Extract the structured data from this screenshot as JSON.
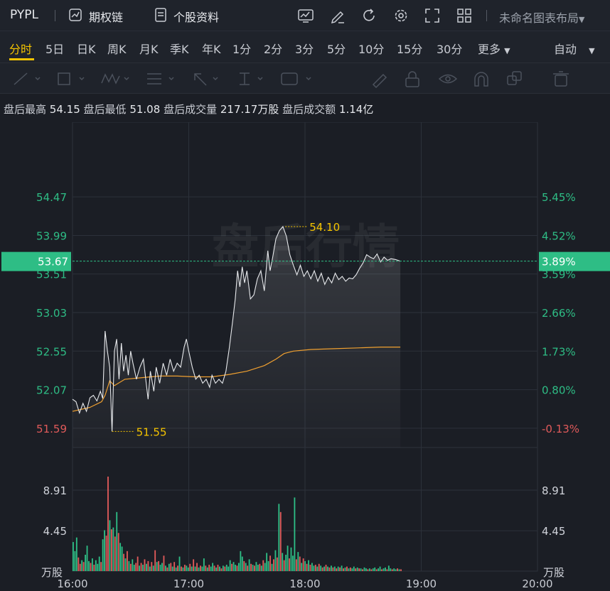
{
  "header": {
    "symbol": "PYPL",
    "options_chain": "期权链",
    "stock_profile": "个股资料",
    "icons": [
      "chart-type-icon",
      "draw-icon",
      "refresh-icon",
      "settings-icon",
      "fullscreen-icon",
      "layout-grid-icon"
    ],
    "layout_name": "未命名图表布局"
  },
  "periods": {
    "items": [
      "分时",
      "5日",
      "日K",
      "周K",
      "月K",
      "季K",
      "年K",
      "1分",
      "2分",
      "3分",
      "5分",
      "10分",
      "15分",
      "30分"
    ],
    "more": "更多",
    "active": "分时",
    "mode": "自动"
  },
  "tools": [
    "trend-line-icon",
    "rectangle-icon",
    "pattern-icon",
    "fib-icon",
    "arrow-icon",
    "measure-icon",
    "text-label-icon",
    "pencil-icon",
    "lock-icon",
    "eye-icon",
    "magnet-icon",
    "copy-icon",
    "trash-icon"
  ],
  "stats": {
    "high_label": "盘后最高",
    "high_value": "54.15",
    "low_label": "盘后最低",
    "low_value": "51.08",
    "vol_label": "盘后成交量",
    "vol_value": "217.17万股",
    "amt_label": "盘后成交额",
    "amt_value": "1.14亿"
  },
  "watermark": "盘后行情",
  "colors": {
    "up": "#2ebd85",
    "down": "#e05a5a",
    "price_line": "#e8eaed",
    "avg_line": "#f0a030",
    "annot": "#f5c400",
    "grid": "#2c313a"
  },
  "chart_data": {
    "type": "line",
    "ylim": [
      51.35,
      55.4
    ],
    "price_ticks": [
      "54.47",
      "53.99",
      "53.51",
      "53.03",
      "52.55",
      "52.07",
      "51.59"
    ],
    "pct_ticks": [
      "5.45%",
      "4.52%",
      "3.59%",
      "2.66%",
      "1.73%",
      "0.80%",
      "-0.13%"
    ],
    "current_price": "53.67",
    "current_pct": "3.89%",
    "max_label": {
      "t": 1.83,
      "y": 54.1,
      "text": "54.10"
    },
    "min_label": {
      "t": 0.34,
      "y": 51.55,
      "text": "51.55"
    },
    "x_ticks": [
      "16:00",
      "17:00",
      "18:00",
      "19:00",
      "20:00"
    ],
    "xlim": [
      0,
      4
    ],
    "volume_unit": "万股",
    "volume_ticks": [
      "8.91",
      "4.45"
    ],
    "volume_ylim": [
      0,
      13.6
    ],
    "price": [
      [
        0,
        51.95
      ],
      [
        0.03,
        51.92
      ],
      [
        0.06,
        51.78
      ],
      [
        0.09,
        51.9
      ],
      [
        0.12,
        51.8
      ],
      [
        0.15,
        51.97
      ],
      [
        0.18,
        52.0
      ],
      [
        0.21,
        51.93
      ],
      [
        0.24,
        52.05
      ],
      [
        0.26,
        51.96
      ],
      [
        0.28,
        52.8
      ],
      [
        0.3,
        52.55
      ],
      [
        0.32,
        52.35
      ],
      [
        0.34,
        51.55
      ],
      [
        0.36,
        52.55
      ],
      [
        0.38,
        52.7
      ],
      [
        0.4,
        52.2
      ],
      [
        0.42,
        52.65
      ],
      [
        0.44,
        52.3
      ],
      [
        0.46,
        52.5
      ],
      [
        0.48,
        52.25
      ],
      [
        0.5,
        52.55
      ],
      [
        0.52,
        52.4
      ],
      [
        0.55,
        52.2
      ],
      [
        0.58,
        52.35
      ],
      [
        0.61,
        52.45
      ],
      [
        0.63,
        52.2
      ],
      [
        0.65,
        51.95
      ],
      [
        0.67,
        52.3
      ],
      [
        0.7,
        52.05
      ],
      [
        0.72,
        52.35
      ],
      [
        0.75,
        52.15
      ],
      [
        0.78,
        52.4
      ],
      [
        0.81,
        52.25
      ],
      [
        0.84,
        52.45
      ],
      [
        0.87,
        52.3
      ],
      [
        0.9,
        52.4
      ],
      [
        0.93,
        52.35
      ],
      [
        0.96,
        52.6
      ],
      [
        0.98,
        52.7
      ],
      [
        1.0,
        52.55
      ],
      [
        1.03,
        52.35
      ],
      [
        1.06,
        52.2
      ],
      [
        1.09,
        52.25
      ],
      [
        1.12,
        52.15
      ],
      [
        1.15,
        52.2
      ],
      [
        1.18,
        52.1
      ],
      [
        1.2,
        52.25
      ],
      [
        1.23,
        52.15
      ],
      [
        1.26,
        52.2
      ],
      [
        1.29,
        52.15
      ],
      [
        1.32,
        52.3
      ],
      [
        1.35,
        52.6
      ],
      [
        1.38,
        52.95
      ],
      [
        1.4,
        53.2
      ],
      [
        1.42,
        53.55
      ],
      [
        1.44,
        53.35
      ],
      [
        1.46,
        53.6
      ],
      [
        1.48,
        53.4
      ],
      [
        1.5,
        53.55
      ],
      [
        1.53,
        53.2
      ],
      [
        1.56,
        53.25
      ],
      [
        1.59,
        53.45
      ],
      [
        1.62,
        53.55
      ],
      [
        1.65,
        53.3
      ],
      [
        1.68,
        53.8
      ],
      [
        1.7,
        53.55
      ],
      [
        1.72,
        53.7
      ],
      [
        1.75,
        53.95
      ],
      [
        1.78,
        54.05
      ],
      [
        1.81,
        54.1
      ],
      [
        1.84,
        53.98
      ],
      [
        1.87,
        53.75
      ],
      [
        1.9,
        53.62
      ],
      [
        1.93,
        53.5
      ],
      [
        1.96,
        53.62
      ],
      [
        1.99,
        53.48
      ],
      [
        2.02,
        53.55
      ],
      [
        2.05,
        53.45
      ],
      [
        2.08,
        53.55
      ],
      [
        2.11,
        53.42
      ],
      [
        2.14,
        53.52
      ],
      [
        2.17,
        53.38
      ],
      [
        2.2,
        53.47
      ],
      [
        2.23,
        53.4
      ],
      [
        2.26,
        53.52
      ],
      [
        2.29,
        53.44
      ],
      [
        2.32,
        53.48
      ],
      [
        2.35,
        53.42
      ],
      [
        2.38,
        53.46
      ],
      [
        2.41,
        53.45
      ],
      [
        2.44,
        53.5
      ],
      [
        2.47,
        53.58
      ],
      [
        2.5,
        53.65
      ],
      [
        2.53,
        53.75
      ],
      [
        2.56,
        53.72
      ],
      [
        2.59,
        53.7
      ],
      [
        2.62,
        53.76
      ],
      [
        2.65,
        53.66
      ],
      [
        2.68,
        53.72
      ],
      [
        2.71,
        53.68
      ],
      [
        2.74,
        53.7
      ],
      [
        2.78,
        53.69
      ],
      [
        2.82,
        53.67
      ]
    ],
    "avg": [
      [
        0,
        51.8
      ],
      [
        0.15,
        51.85
      ],
      [
        0.25,
        51.92
      ],
      [
        0.28,
        52.0
      ],
      [
        0.32,
        52.18
      ],
      [
        0.36,
        52.12
      ],
      [
        0.45,
        52.2
      ],
      [
        0.6,
        52.22
      ],
      [
        0.75,
        52.24
      ],
      [
        0.9,
        52.24
      ],
      [
        1.05,
        52.23
      ],
      [
        1.2,
        52.23
      ],
      [
        1.35,
        52.26
      ],
      [
        1.5,
        52.3
      ],
      [
        1.65,
        52.37
      ],
      [
        1.75,
        52.45
      ],
      [
        1.82,
        52.52
      ],
      [
        1.9,
        52.55
      ],
      [
        2.05,
        52.57
      ],
      [
        2.25,
        52.58
      ],
      [
        2.45,
        52.59
      ],
      [
        2.65,
        52.6
      ],
      [
        2.82,
        52.6
      ]
    ],
    "volume": [
      [
        0.0,
        3.2,
        "u"
      ],
      [
        0.015,
        2.2,
        "u"
      ],
      [
        0.03,
        3.7,
        "u"
      ],
      [
        0.045,
        1.5,
        "d"
      ],
      [
        0.06,
        0.8,
        "d"
      ],
      [
        0.075,
        1.2,
        "u"
      ],
      [
        0.09,
        1.0,
        "d"
      ],
      [
        0.105,
        1.8,
        "u"
      ],
      [
        0.12,
        2.8,
        "u"
      ],
      [
        0.135,
        1.1,
        "u"
      ],
      [
        0.15,
        0.9,
        "d"
      ],
      [
        0.165,
        1.4,
        "u"
      ],
      [
        0.18,
        0.7,
        "d"
      ],
      [
        0.195,
        1.2,
        "u"
      ],
      [
        0.21,
        0.8,
        "u"
      ],
      [
        0.225,
        1.6,
        "u"
      ],
      [
        0.24,
        1.0,
        "d"
      ],
      [
        0.255,
        3.5,
        "u"
      ],
      [
        0.27,
        4.5,
        "u"
      ],
      [
        0.285,
        3.9,
        "d"
      ],
      [
        0.3,
        10.4,
        "d"
      ],
      [
        0.315,
        5.6,
        "u"
      ],
      [
        0.33,
        4.6,
        "d"
      ],
      [
        0.345,
        4.8,
        "u"
      ],
      [
        0.36,
        3.8,
        "d"
      ],
      [
        0.375,
        6.5,
        "u"
      ],
      [
        0.39,
        4.2,
        "d"
      ],
      [
        0.405,
        3.1,
        "u"
      ],
      [
        0.42,
        2.7,
        "u"
      ],
      [
        0.435,
        1.9,
        "d"
      ],
      [
        0.45,
        1.4,
        "u"
      ],
      [
        0.465,
        2.2,
        "d"
      ],
      [
        0.48,
        1.1,
        "u"
      ],
      [
        0.495,
        0.8,
        "d"
      ],
      [
        0.51,
        1.3,
        "u"
      ],
      [
        0.525,
        0.7,
        "u"
      ],
      [
        0.54,
        0.9,
        "d"
      ],
      [
        0.555,
        1.6,
        "d"
      ],
      [
        0.57,
        0.6,
        "u"
      ],
      [
        0.585,
        0.9,
        "d"
      ],
      [
        0.6,
        0.7,
        "u"
      ],
      [
        0.615,
        1.3,
        "d"
      ],
      [
        0.63,
        0.8,
        "u"
      ],
      [
        0.645,
        1.1,
        "d"
      ],
      [
        0.66,
        0.5,
        "u"
      ],
      [
        0.675,
        1.0,
        "d"
      ],
      [
        0.69,
        0.6,
        "u"
      ],
      [
        0.705,
        2.3,
        "d"
      ],
      [
        0.72,
        1.0,
        "u"
      ],
      [
        0.735,
        1.1,
        "d"
      ],
      [
        0.75,
        0.7,
        "u"
      ],
      [
        0.765,
        0.9,
        "u"
      ],
      [
        0.78,
        1.7,
        "d"
      ],
      [
        0.795,
        0.6,
        "u"
      ],
      [
        0.81,
        0.4,
        "d"
      ],
      [
        0.825,
        0.8,
        "u"
      ],
      [
        0.84,
        0.9,
        "d"
      ],
      [
        0.855,
        0.5,
        "u"
      ],
      [
        0.87,
        1.0,
        "d"
      ],
      [
        0.885,
        0.4,
        "u"
      ],
      [
        0.9,
        0.6,
        "d"
      ],
      [
        0.915,
        1.6,
        "u"
      ],
      [
        0.93,
        0.5,
        "d"
      ],
      [
        0.945,
        0.4,
        "u"
      ],
      [
        0.96,
        0.7,
        "d"
      ],
      [
        0.975,
        0.6,
        "u"
      ],
      [
        0.99,
        0.4,
        "u"
      ],
      [
        1.005,
        0.8,
        "d"
      ],
      [
        1.02,
        0.5,
        "u"
      ],
      [
        1.035,
        1.3,
        "d"
      ],
      [
        1.05,
        0.5,
        "u"
      ],
      [
        1.065,
        0.9,
        "d"
      ],
      [
        1.08,
        0.4,
        "u"
      ],
      [
        1.095,
        0.6,
        "d"
      ],
      [
        1.11,
        0.5,
        "u"
      ],
      [
        1.125,
        1.4,
        "u"
      ],
      [
        1.14,
        0.6,
        "d"
      ],
      [
        1.155,
        0.4,
        "u"
      ],
      [
        1.17,
        0.7,
        "d"
      ],
      [
        1.185,
        0.5,
        "u"
      ],
      [
        1.2,
        0.9,
        "u"
      ],
      [
        1.215,
        0.6,
        "d"
      ],
      [
        1.23,
        0.4,
        "u"
      ],
      [
        1.245,
        0.7,
        "d"
      ],
      [
        1.26,
        0.5,
        "u"
      ],
      [
        1.275,
        0.3,
        "d"
      ],
      [
        1.29,
        0.6,
        "u"
      ],
      [
        1.305,
        0.5,
        "d"
      ],
      [
        1.32,
        0.7,
        "u"
      ],
      [
        1.335,
        0.5,
        "u"
      ],
      [
        1.35,
        1.2,
        "u"
      ],
      [
        1.365,
        0.8,
        "d"
      ],
      [
        1.38,
        1.0,
        "u"
      ],
      [
        1.395,
        0.7,
        "u"
      ],
      [
        1.41,
        0.6,
        "d"
      ],
      [
        1.425,
        0.9,
        "u"
      ],
      [
        1.44,
        2.2,
        "u"
      ],
      [
        1.455,
        1.6,
        "u"
      ],
      [
        1.47,
        1.1,
        "d"
      ],
      [
        1.485,
        0.9,
        "u"
      ],
      [
        1.5,
        0.6,
        "d"
      ],
      [
        1.515,
        1.3,
        "u"
      ],
      [
        1.53,
        0.8,
        "d"
      ],
      [
        1.545,
        0.7,
        "u"
      ],
      [
        1.56,
        0.6,
        "d"
      ],
      [
        1.575,
        1.0,
        "u"
      ],
      [
        1.59,
        0.7,
        "u"
      ],
      [
        1.605,
        0.8,
        "d"
      ],
      [
        1.62,
        0.6,
        "u"
      ],
      [
        1.635,
        1.2,
        "d"
      ],
      [
        1.65,
        0.9,
        "u"
      ],
      [
        1.665,
        2.0,
        "u"
      ],
      [
        1.68,
        1.1,
        "u"
      ],
      [
        1.695,
        1.7,
        "d"
      ],
      [
        1.71,
        0.8,
        "u"
      ],
      [
        1.725,
        1.3,
        "d"
      ],
      [
        1.74,
        2.3,
        "u"
      ],
      [
        1.755,
        1.5,
        "d"
      ],
      [
        1.77,
        7.4,
        "u"
      ],
      [
        1.785,
        6.5,
        "d"
      ],
      [
        1.8,
        2.0,
        "u"
      ],
      [
        1.815,
        1.2,
        "d"
      ],
      [
        1.83,
        1.8,
        "u"
      ],
      [
        1.845,
        2.8,
        "u"
      ],
      [
        1.86,
        1.4,
        "d"
      ],
      [
        1.875,
        2.6,
        "u"
      ],
      [
        1.89,
        1.7,
        "u"
      ],
      [
        1.905,
        8.1,
        "u"
      ],
      [
        1.92,
        1.3,
        "d"
      ],
      [
        1.935,
        2.1,
        "u"
      ],
      [
        1.95,
        1.6,
        "d"
      ],
      [
        1.965,
        0.9,
        "u"
      ],
      [
        1.98,
        1.4,
        "d"
      ],
      [
        1.995,
        1.1,
        "u"
      ],
      [
        2.01,
        0.8,
        "d"
      ],
      [
        2.025,
        1.2,
        "u"
      ],
      [
        2.04,
        0.7,
        "d"
      ],
      [
        2.055,
        0.9,
        "u"
      ],
      [
        2.07,
        0.6,
        "u"
      ],
      [
        2.085,
        0.7,
        "d"
      ],
      [
        2.1,
        0.5,
        "u"
      ],
      [
        2.115,
        0.8,
        "d"
      ],
      [
        2.13,
        0.6,
        "u"
      ],
      [
        2.145,
        0.4,
        "d"
      ],
      [
        2.16,
        0.5,
        "u"
      ],
      [
        2.175,
        0.7,
        "d"
      ],
      [
        2.19,
        0.5,
        "u"
      ],
      [
        2.205,
        0.4,
        "d"
      ],
      [
        2.22,
        0.6,
        "u"
      ],
      [
        2.235,
        0.4,
        "d"
      ],
      [
        2.25,
        0.5,
        "u"
      ],
      [
        2.265,
        0.3,
        "d"
      ],
      [
        2.28,
        0.5,
        "u"
      ],
      [
        2.295,
        0.4,
        "d"
      ],
      [
        2.31,
        0.6,
        "u"
      ],
      [
        2.325,
        0.3,
        "d"
      ],
      [
        2.34,
        0.4,
        "u"
      ],
      [
        2.355,
        0.5,
        "d"
      ],
      [
        2.37,
        0.3,
        "u"
      ],
      [
        2.385,
        0.4,
        "d"
      ],
      [
        2.4,
        0.3,
        "u"
      ],
      [
        2.415,
        0.5,
        "u"
      ],
      [
        2.43,
        0.3,
        "d"
      ],
      [
        2.445,
        0.4,
        "u"
      ],
      [
        2.46,
        0.3,
        "d"
      ],
      [
        2.475,
        0.3,
        "u"
      ],
      [
        2.49,
        0.2,
        "d"
      ],
      [
        2.505,
        0.4,
        "u"
      ],
      [
        2.52,
        0.3,
        "u"
      ],
      [
        2.535,
        0.2,
        "d"
      ],
      [
        2.55,
        0.3,
        "u"
      ],
      [
        2.565,
        0.2,
        "d"
      ],
      [
        2.58,
        0.3,
        "u"
      ],
      [
        2.595,
        0.4,
        "u"
      ],
      [
        2.61,
        0.2,
        "d"
      ],
      [
        2.625,
        0.3,
        "u"
      ],
      [
        2.64,
        0.5,
        "u"
      ],
      [
        2.655,
        0.2,
        "d"
      ],
      [
        2.67,
        0.3,
        "u"
      ],
      [
        2.685,
        0.4,
        "u"
      ],
      [
        2.7,
        0.2,
        "d"
      ],
      [
        2.715,
        0.6,
        "u"
      ],
      [
        2.73,
        0.3,
        "u"
      ],
      [
        2.745,
        0.2,
        "d"
      ],
      [
        2.76,
        0.3,
        "u"
      ],
      [
        2.775,
        0.2,
        "u"
      ],
      [
        2.79,
        0.3,
        "d"
      ],
      [
        2.805,
        0.2,
        "u"
      ],
      [
        2.82,
        0.2,
        "d"
      ]
    ]
  }
}
